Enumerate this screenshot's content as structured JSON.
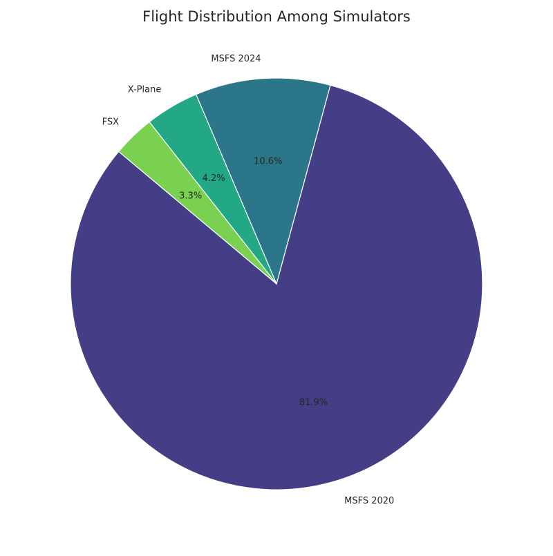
{
  "chart_data": {
    "type": "pie",
    "title": "Flight Distribution Among Simulators",
    "categories": [
      "MSFS 2020",
      "MSFS 2024",
      "X-Plane",
      "FSX"
    ],
    "values": [
      81.9,
      10.6,
      4.2,
      3.3
    ],
    "pct_labels": [
      "81.9%",
      "10.6%",
      "4.2%",
      "3.3%"
    ],
    "colors": [
      "#433e85",
      "#2c7689",
      "#22a884",
      "#7ad151"
    ],
    "start_angle_deg": 140,
    "direction": "counterclockwise",
    "legend": "none"
  }
}
